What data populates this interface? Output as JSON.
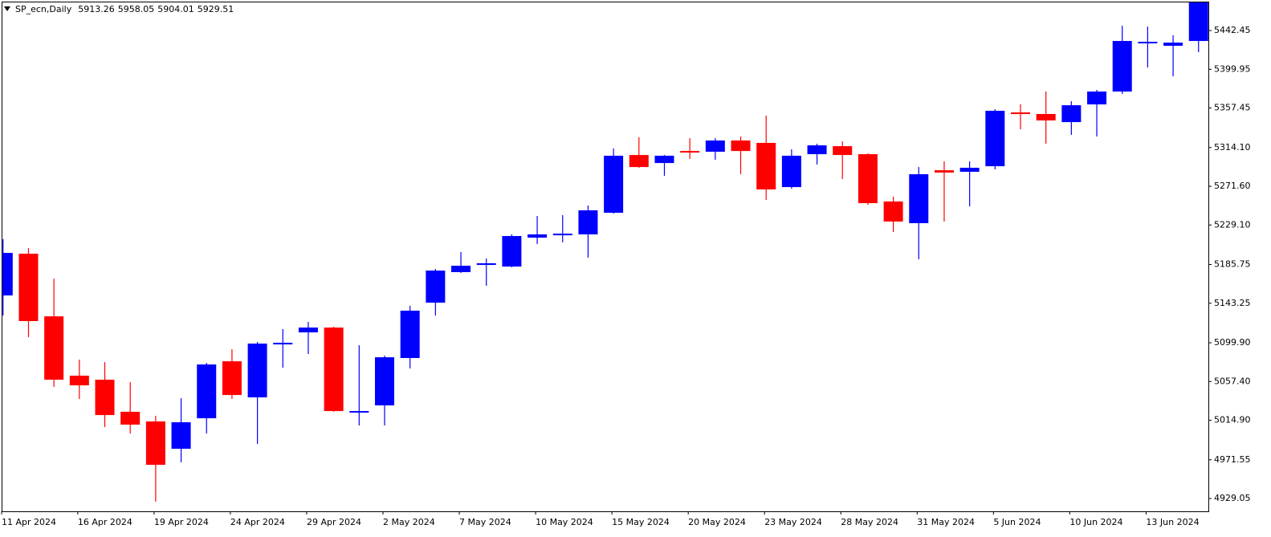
{
  "chart_data": {
    "type": "candlestick",
    "title": "SP_ecn,Daily",
    "header_values": [
      5913.26,
      5958.05,
      5904.01,
      5929.51
    ],
    "categories": [
      "11 Apr 2024",
      null,
      null,
      "16 Apr 2024",
      null,
      null,
      "19 Apr 2024",
      null,
      null,
      "24 Apr 2024",
      null,
      null,
      "29 Apr 2024",
      null,
      null,
      "2 May 2024",
      null,
      null,
      "7 May 2024",
      null,
      null,
      "10 May 2024",
      null,
      null,
      "15 May 2024",
      null,
      null,
      "20 May 2024",
      null,
      null,
      "23 May 2024",
      null,
      null,
      "28 May 2024",
      null,
      null,
      "31 May 2024",
      null,
      null,
      "5 Jun 2024",
      null,
      null,
      "10 Jun 2024",
      null,
      null,
      "13 Jun 2024",
      null,
      null
    ],
    "open": [
      5151.8,
      5197.6,
      5128.9,
      5063.8,
      5059.4,
      5024.2,
      5013.6,
      4983.6,
      5017.1,
      5079.6,
      5040.0,
      5098.1,
      5111.3,
      5116.6,
      5023.3,
      5031.2,
      5083.2,
      5143.9,
      5177.4,
      5185.3,
      5183.5,
      5215.2,
      5218.8,
      5218.8,
      5242.5,
      5305.9,
      5297.1,
      5310.3,
      5309.5,
      5321.8,
      5319.2,
      5270.7,
      5306.8,
      5315.6,
      5306.8,
      5254.9,
      5231.1,
      5289.2,
      5287.5,
      5293.6,
      5352.6,
      5350.9,
      5342.0,
      5361.4,
      5375.5,
      5429.2,
      5425.7,
      5431.0
    ],
    "high": [
      5213.5,
      5203.8,
      5170.3,
      5081.4,
      5078.7,
      5056.7,
      5019.7,
      5039.1,
      5077.9,
      5092.8,
      5100.8,
      5114.9,
      5122.8,
      5117.5,
      5097.2,
      5085.8,
      5140.4,
      5180.9,
      5199.4,
      5192.3,
      5218.8,
      5239.0,
      5239.9,
      5250.5,
      5313.0,
      5325.3,
      5305.9,
      5324.4,
      5324.4,
      5326.2,
      5349.1,
      5312.1,
      5318.3,
      5320.9,
      5307.7,
      5260.2,
      5292.7,
      5298.9,
      5298.9,
      5356.1,
      5361.4,
      5375.5,
      5364.9,
      5377.3,
      5447.7,
      5446.8,
      5437.2,
      5473.3
    ],
    "low": [
      5129.8,
      5106.0,
      5051.5,
      5038.2,
      5007.4,
      5000.4,
      4925.5,
      4968.7,
      5000.4,
      5038.2,
      4988.9,
      5072.6,
      5087.6,
      5024.2,
      5009.2,
      5009.2,
      5071.7,
      5129.8,
      5176.5,
      5162.4,
      5182.7,
      5208.2,
      5210.0,
      5193.2,
      5241.7,
      5291.9,
      5283.0,
      5301.5,
      5300.7,
      5284.8,
      5256.6,
      5269.0,
      5295.4,
      5279.5,
      5251.3,
      5221.4,
      5191.5,
      5232.9,
      5249.6,
      5290.1,
      5334.1,
      5318.3,
      5328.0,
      5326.2,
      5372.9,
      5401.9,
      5392.2,
      5418.7
    ],
    "close": [
      5198.5,
      5123.7,
      5059.4,
      5053.2,
      5020.6,
      5010.1,
      4966.0,
      5012.7,
      5076.1,
      5042.6,
      5099.0,
      5099.9,
      5116.6,
      5025.0,
      5025.0,
      5084.0,
      5135.1,
      5179.1,
      5184.4,
      5187.1,
      5217.0,
      5218.8,
      5219.6,
      5245.2,
      5305.1,
      5292.7,
      5305.1,
      5309.5,
      5321.8,
      5310.3,
      5268.1,
      5305.1,
      5316.5,
      5305.9,
      5253.1,
      5232.9,
      5284.8,
      5286.6,
      5291.9,
      5354.4,
      5351.7,
      5343.8,
      5360.5,
      5375.5,
      5431.0,
      5430.1,
      5429.2,
      5473.3
    ],
    "up_color": "#0000ff",
    "down_color": "#ff0000",
    "ylim": [
      4915.0,
      5473.3
    ],
    "yticks": [
      5442.45,
      5399.95,
      5357.45,
      {
        "value": 5314.1,
        "label": "5314.10"
      },
      {
        "value": 5271.6,
        "label": "5271.60"
      },
      {
        "value": 5229.1,
        "label": "5229.10"
      },
      5185.75,
      5143.25,
      {
        "value": 5099.9,
        "label": "5099.90"
      },
      {
        "value": 5057.4,
        "label": "5057.40"
      },
      {
        "value": 5014.9,
        "label": "5014.90"
      },
      4971.55,
      4929.05
    ]
  }
}
